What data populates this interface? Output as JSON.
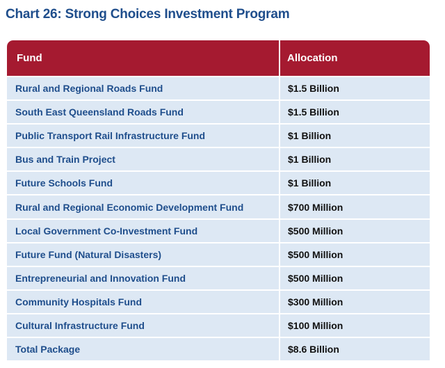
{
  "title": "Chart 26: Strong Choices Investment Program",
  "table": {
    "headers": [
      "Fund",
      "Allocation"
    ],
    "rows": [
      [
        "Rural and Regional Roads Fund",
        "$1.5 Billion"
      ],
      [
        "South East Queensland Roads Fund",
        "$1.5 Billion"
      ],
      [
        "Public Transport Rail Infrastructure Fund",
        "$1 Billion"
      ],
      [
        "Bus and Train Project",
        "$1 Billion"
      ],
      [
        "Future Schools Fund",
        "$1 Billion"
      ],
      [
        "Rural and Regional Economic Development Fund",
        "$700 Million"
      ],
      [
        "Local Government Co-Investment Fund",
        "$500 Million"
      ],
      [
        "Future Fund (Natural Disasters)",
        "$500 Million"
      ],
      [
        "Entrepreneurial and Innovation Fund",
        "$500 Million"
      ],
      [
        "Community Hospitals Fund",
        "$300 Million"
      ],
      [
        "Cultural Infrastructure Fund",
        "$100 Million"
      ],
      [
        "Total Package",
        "$8.6 Billion"
      ]
    ]
  },
  "colors": {
    "title": "#1f4e8c",
    "header_bg": "#a51a30",
    "row_bg": "#dde8f4",
    "fund_text": "#1f4e8c",
    "allocation_text": "#111111"
  }
}
